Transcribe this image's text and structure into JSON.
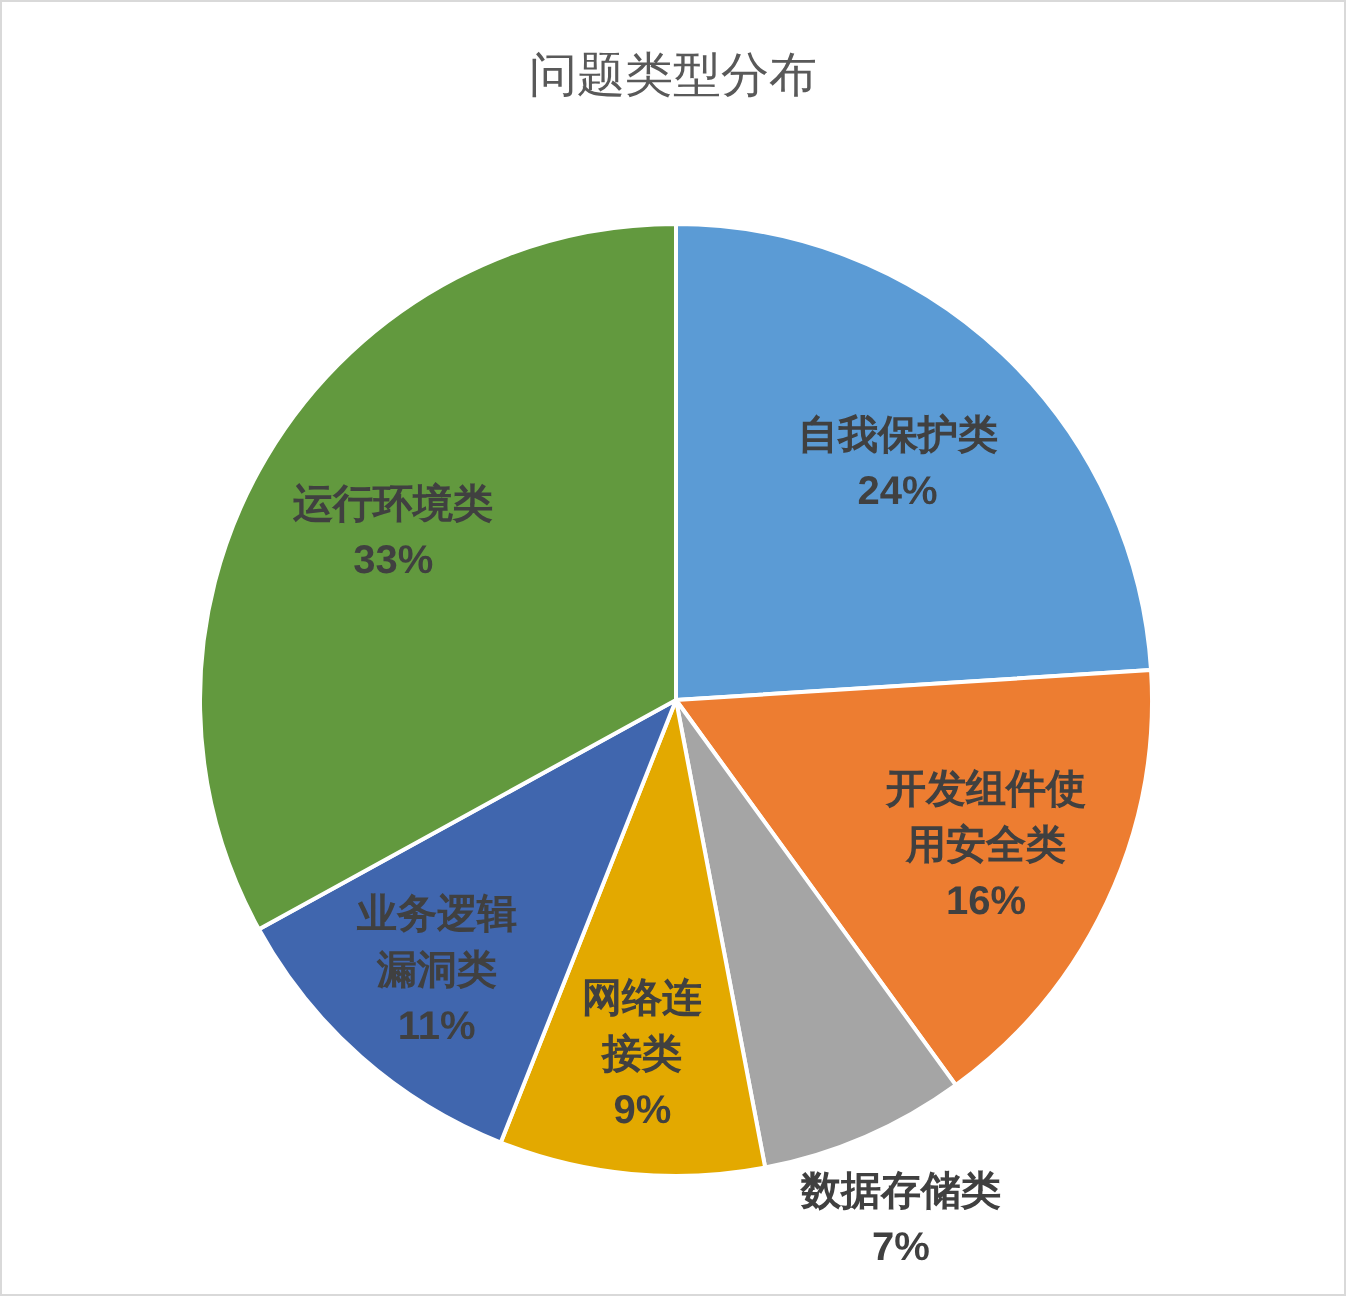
{
  "chart_data": {
    "type": "pie",
    "title": "问题类型分布",
    "categories": [
      "自我保护类",
      "开发组件使用安全类",
      "数据存储类",
      "网络连接类",
      "业务逻辑漏洞类",
      "运行环境类"
    ],
    "values": [
      24,
      16,
      7,
      9,
      11,
      33
    ],
    "colors": [
      "#5b9bd5",
      "#ed7d31",
      "#a5a5a5",
      "#e3a900",
      "#4066ae",
      "#62993e"
    ],
    "value_labels": [
      "24%",
      "16%",
      "7%",
      "9%",
      "11%",
      "33%"
    ]
  }
}
